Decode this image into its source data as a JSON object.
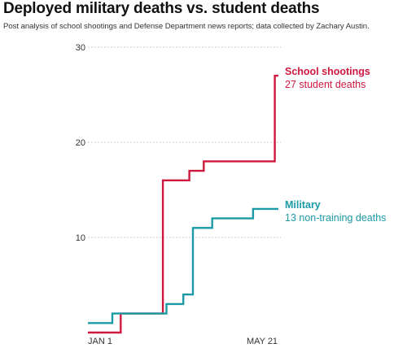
{
  "chart_data": {
    "type": "line",
    "title": "Deployed military deaths vs. student deaths",
    "subtitle": "Post analysis of school shootings and Defense Department news reports; data collected by Zachary Austin.",
    "xlabel": "",
    "ylabel": "",
    "x_ticks": [
      "JAN 1",
      "MAY 21"
    ],
    "xlim": [
      "2018-01-01",
      "2018-05-21"
    ],
    "ylim": [
      0,
      30
    ],
    "y_ticks": [
      10,
      20,
      30
    ],
    "grid": true,
    "series": [
      {
        "name": "School shootings",
        "annotation": "27 student deaths",
        "color": "#d0173e",
        "points": [
          [
            "2017-12-28",
            0
          ],
          [
            "2018-01-10",
            0
          ],
          [
            "2018-01-10",
            2
          ],
          [
            "2018-02-14",
            2
          ],
          [
            "2018-02-14",
            16
          ],
          [
            "2018-03-08",
            16
          ],
          [
            "2018-03-08",
            17
          ],
          [
            "2018-03-20",
            17
          ],
          [
            "2018-03-20",
            18
          ],
          [
            "2018-05-18",
            18
          ],
          [
            "2018-05-18",
            27
          ],
          [
            "2018-05-21",
            27
          ]
        ]
      },
      {
        "name": "Military",
        "annotation": "13 non-training deaths",
        "color": "#1a9aa6",
        "points": [
          [
            "2017-12-28",
            1
          ],
          [
            "2018-01-03",
            1
          ],
          [
            "2018-01-03",
            2
          ],
          [
            "2018-02-17",
            2
          ],
          [
            "2018-02-17",
            3
          ],
          [
            "2018-03-03",
            3
          ],
          [
            "2018-03-03",
            4
          ],
          [
            "2018-03-11",
            4
          ],
          [
            "2018-03-11",
            11
          ],
          [
            "2018-03-27",
            11
          ],
          [
            "2018-03-27",
            12
          ],
          [
            "2018-04-30",
            12
          ],
          [
            "2018-04-30",
            13
          ],
          [
            "2018-05-21",
            13
          ]
        ]
      }
    ]
  }
}
